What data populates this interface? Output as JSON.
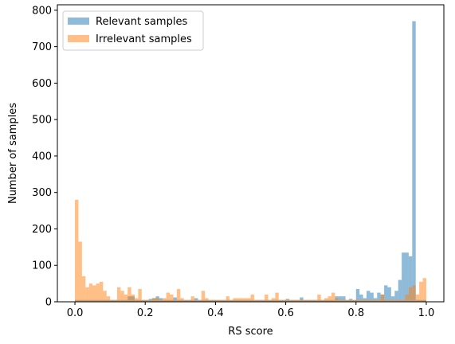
{
  "chart_data": {
    "type": "histogram",
    "xlabel": "RS score",
    "ylabel": "Number of samples",
    "xlim": [
      -0.05,
      1.05
    ],
    "ylim": [
      0,
      815
    ],
    "xticks": [
      0.0,
      0.2,
      0.4,
      0.6,
      0.8,
      1.0
    ],
    "xtick_labels": [
      "0.0",
      "0.2",
      "0.4",
      "0.6",
      "0.8",
      "1.0"
    ],
    "yticks": [
      0,
      100,
      200,
      300,
      400,
      500,
      600,
      700,
      800
    ],
    "ytick_labels": [
      "0",
      "100",
      "200",
      "300",
      "400",
      "500",
      "600",
      "700",
      "800"
    ],
    "bins": 100,
    "bin_range": [
      0,
      1
    ],
    "legend_position": "upper-left",
    "series": [
      {
        "name": "Relevant samples",
        "color": "#1f77b4",
        "alpha": 0.5,
        "counts": [
          5,
          5,
          5,
          5,
          5,
          5,
          5,
          5,
          5,
          5,
          5,
          5,
          5,
          5,
          5,
          15,
          15,
          5,
          5,
          5,
          5,
          8,
          10,
          15,
          10,
          5,
          5,
          5,
          12,
          5,
          5,
          5,
          5,
          5,
          10,
          5,
          5,
          5,
          5,
          5,
          5,
          5,
          5,
          5,
          5,
          5,
          5,
          5,
          5,
          5,
          5,
          5,
          5,
          5,
          5,
          5,
          5,
          5,
          5,
          5,
          8,
          5,
          5,
          5,
          12,
          5,
          5,
          5,
          5,
          5,
          5,
          5,
          5,
          5,
          15,
          15,
          15,
          5,
          8,
          5,
          35,
          20,
          10,
          30,
          25,
          10,
          25,
          20,
          45,
          40,
          15,
          30,
          60,
          135,
          135,
          125,
          770,
          5,
          5,
          5
        ]
      },
      {
        "name": "Irrelevant samples",
        "color": "#ff7f0e",
        "alpha": 0.5,
        "counts": [
          280,
          165,
          70,
          40,
          50,
          45,
          50,
          55,
          30,
          15,
          5,
          5,
          40,
          30,
          20,
          40,
          20,
          10,
          35,
          5,
          5,
          5,
          10,
          10,
          5,
          10,
          25,
          20,
          5,
          35,
          10,
          5,
          5,
          15,
          5,
          5,
          30,
          10,
          5,
          5,
          5,
          5,
          5,
          15,
          5,
          10,
          10,
          10,
          10,
          10,
          20,
          5,
          5,
          5,
          20,
          5,
          10,
          25,
          5,
          5,
          5,
          5,
          5,
          5,
          5,
          5,
          5,
          5,
          5,
          20,
          5,
          10,
          15,
          25,
          10,
          5,
          5,
          5,
          5,
          5,
          5,
          5,
          5,
          5,
          5,
          5,
          5,
          20,
          5,
          5,
          5,
          5,
          5,
          5,
          20,
          40,
          45,
          20,
          55,
          65
        ]
      }
    ]
  }
}
